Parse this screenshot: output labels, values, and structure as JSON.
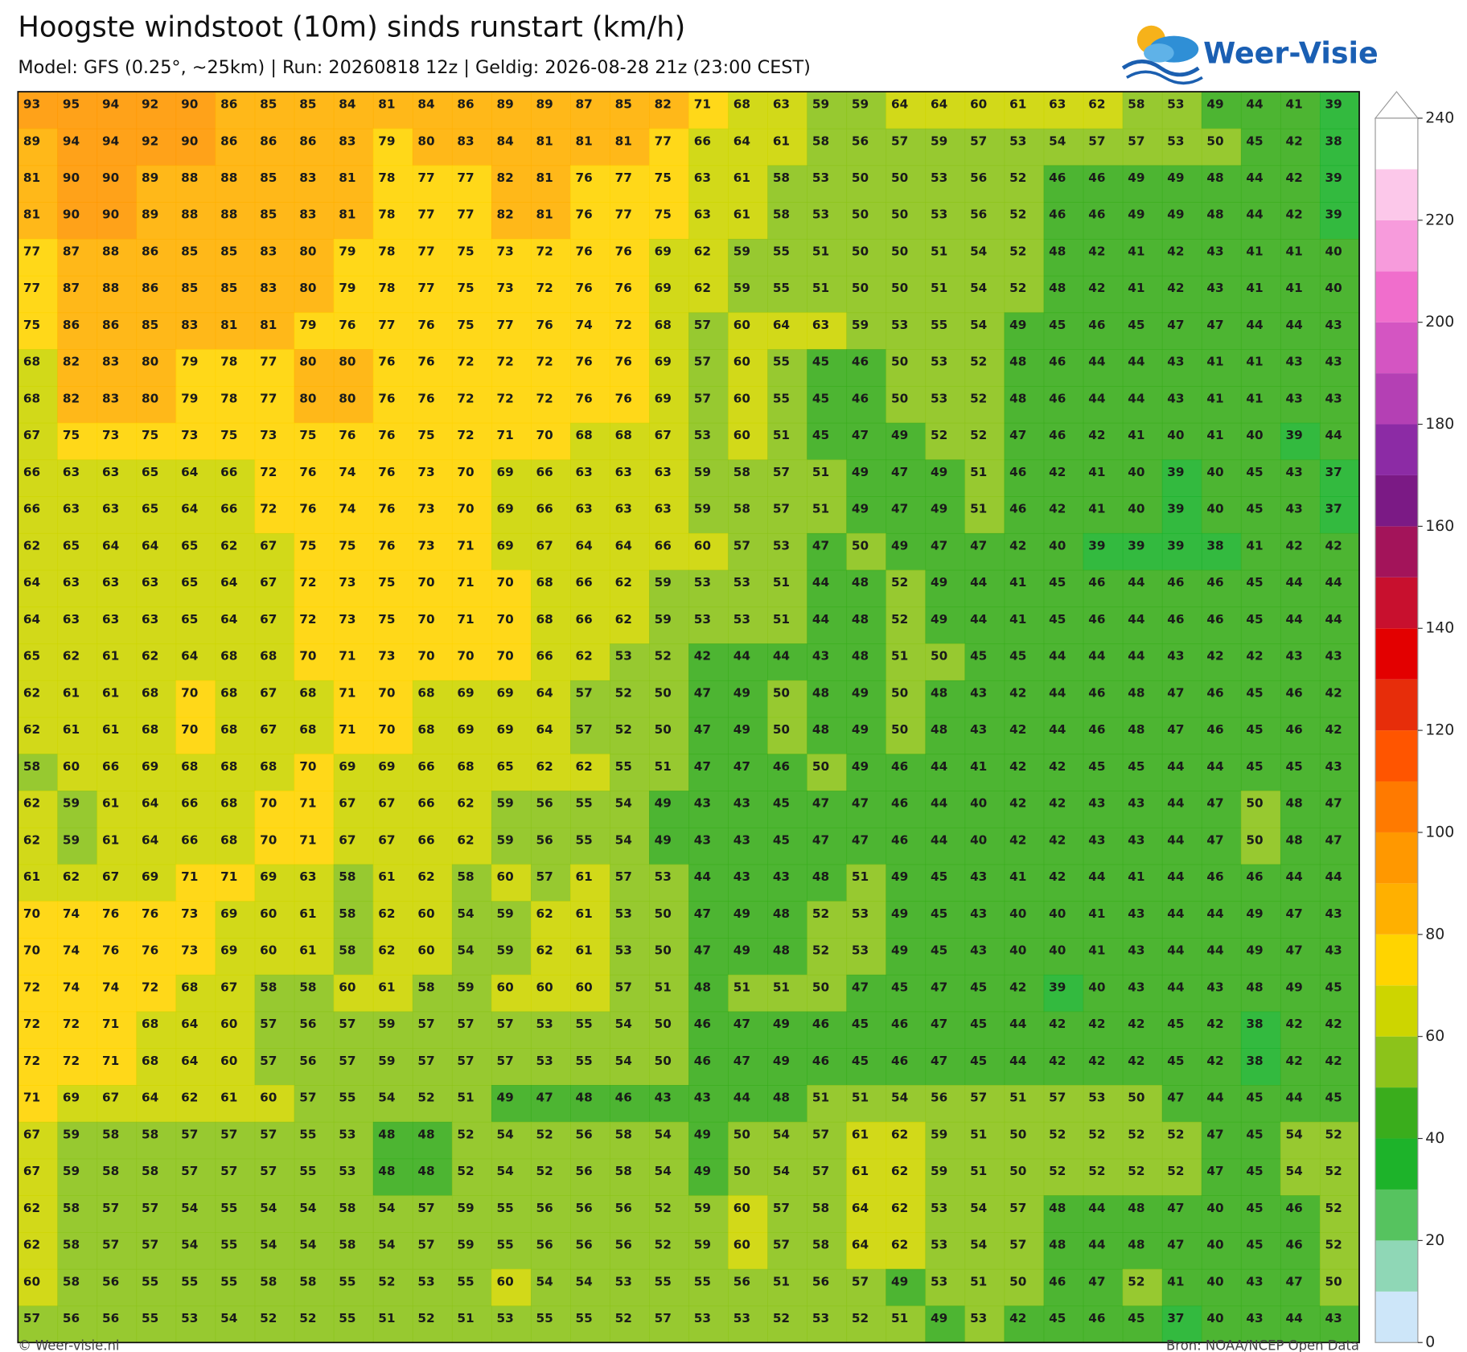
{
  "header": {
    "title": "Hoogste windstoot (10m) sinds runstart (km/h)",
    "subtitle": "Model: GFS (0.25°, ~25km)  |  Run: 20260818 12z  |  Geldig: 2026-08-28 21z (23:00 CEST)",
    "logo": "Weer-Visie"
  },
  "grid": {
    "values": [
      [
        93,
        95,
        94,
        92,
        90,
        86,
        85,
        85,
        84,
        81,
        84,
        86,
        89,
        89,
        87,
        85,
        82,
        71,
        68,
        63,
        59,
        59,
        64,
        64,
        60,
        61,
        63,
        62,
        58,
        53,
        49,
        44,
        41,
        39
      ],
      [
        89,
        94,
        94,
        92,
        90,
        86,
        86,
        86,
        83,
        79,
        80,
        83,
        84,
        81,
        81,
        81,
        77,
        66,
        64,
        61,
        58,
        56,
        57,
        59,
        57,
        53,
        54,
        57,
        57,
        53,
        50,
        45,
        42,
        38
      ],
      [
        81,
        90,
        90,
        89,
        88,
        88,
        85,
        83,
        81,
        78,
        77,
        77,
        82,
        81,
        76,
        77,
        75,
        63,
        61,
        58,
        53,
        50,
        50,
        53,
        56,
        52,
        46,
        46,
        49,
        49,
        48,
        44,
        42,
        39
      ],
      [
        81,
        90,
        90,
        89,
        88,
        88,
        85,
        83,
        81,
        78,
        77,
        77,
        82,
        81,
        76,
        77,
        75,
        63,
        61,
        58,
        53,
        50,
        50,
        53,
        56,
        52,
        46,
        46,
        49,
        49,
        48,
        44,
        42,
        39
      ],
      [
        77,
        87,
        88,
        86,
        85,
        85,
        83,
        80,
        79,
        78,
        77,
        75,
        73,
        72,
        76,
        76,
        69,
        62,
        59,
        55,
        51,
        50,
        50,
        51,
        54,
        52,
        48,
        42,
        41,
        42,
        43,
        41,
        41,
        40
      ],
      [
        77,
        87,
        88,
        86,
        85,
        85,
        83,
        80,
        79,
        78,
        77,
        75,
        73,
        72,
        76,
        76,
        69,
        62,
        59,
        55,
        51,
        50,
        50,
        51,
        54,
        52,
        48,
        42,
        41,
        42,
        43,
        41,
        41,
        40
      ],
      [
        75,
        86,
        86,
        85,
        83,
        81,
        81,
        79,
        76,
        77,
        76,
        75,
        77,
        76,
        74,
        72,
        68,
        57,
        60,
        64,
        63,
        59,
        53,
        55,
        54,
        49,
        45,
        46,
        45,
        47,
        47,
        44,
        44,
        43
      ],
      [
        68,
        82,
        83,
        80,
        79,
        78,
        77,
        80,
        80,
        76,
        76,
        72,
        72,
        72,
        76,
        76,
        69,
        57,
        60,
        55,
        45,
        46,
        50,
        53,
        52,
        48,
        46,
        44,
        44,
        43,
        41,
        41,
        43,
        43
      ],
      [
        68,
        82,
        83,
        80,
        79,
        78,
        77,
        80,
        80,
        76,
        76,
        72,
        72,
        72,
        76,
        76,
        69,
        57,
        60,
        55,
        45,
        46,
        50,
        53,
        52,
        48,
        46,
        44,
        44,
        43,
        41,
        41,
        43,
        43
      ],
      [
        67,
        75,
        73,
        75,
        73,
        75,
        73,
        75,
        76,
        76,
        75,
        72,
        71,
        70,
        68,
        68,
        67,
        53,
        60,
        51,
        45,
        47,
        49,
        52,
        52,
        47,
        46,
        42,
        41,
        40,
        41,
        40,
        39,
        44
      ],
      [
        66,
        63,
        63,
        65,
        64,
        66,
        72,
        76,
        74,
        76,
        73,
        70,
        69,
        66,
        63,
        63,
        63,
        59,
        58,
        57,
        51,
        49,
        47,
        49,
        51,
        46,
        42,
        41,
        40,
        39,
        40,
        45,
        43,
        37
      ],
      [
        66,
        63,
        63,
        65,
        64,
        66,
        72,
        76,
        74,
        76,
        73,
        70,
        69,
        66,
        63,
        63,
        63,
        59,
        58,
        57,
        51,
        49,
        47,
        49,
        51,
        46,
        42,
        41,
        40,
        39,
        40,
        45,
        43,
        37
      ],
      [
        62,
        65,
        64,
        64,
        65,
        62,
        67,
        75,
        75,
        76,
        73,
        71,
        69,
        67,
        64,
        64,
        66,
        60,
        57,
        53,
        47,
        50,
        49,
        47,
        47,
        42,
        40,
        39,
        39,
        39,
        38,
        41,
        42,
        42
      ],
      [
        64,
        63,
        63,
        63,
        65,
        64,
        67,
        72,
        73,
        75,
        70,
        71,
        70,
        68,
        66,
        62,
        59,
        53,
        53,
        51,
        44,
        48,
        52,
        49,
        44,
        41,
        45,
        46,
        44,
        46,
        46,
        45,
        44,
        44
      ],
      [
        64,
        63,
        63,
        63,
        65,
        64,
        67,
        72,
        73,
        75,
        70,
        71,
        70,
        68,
        66,
        62,
        59,
        53,
        53,
        51,
        44,
        48,
        52,
        49,
        44,
        41,
        45,
        46,
        44,
        46,
        46,
        45,
        44,
        44
      ],
      [
        65,
        62,
        61,
        62,
        64,
        68,
        68,
        70,
        71,
        73,
        70,
        70,
        70,
        66,
        62,
        53,
        52,
        42,
        44,
        44,
        43,
        48,
        51,
        50,
        45,
        45,
        44,
        44,
        44,
        43,
        42,
        42,
        43,
        43
      ],
      [
        62,
        61,
        61,
        68,
        70,
        68,
        67,
        68,
        71,
        70,
        68,
        69,
        69,
        64,
        57,
        52,
        50,
        47,
        49,
        50,
        48,
        49,
        50,
        48,
        43,
        42,
        44,
        46,
        48,
        47,
        46,
        45,
        46,
        42
      ],
      [
        62,
        61,
        61,
        68,
        70,
        68,
        67,
        68,
        71,
        70,
        68,
        69,
        69,
        64,
        57,
        52,
        50,
        47,
        49,
        50,
        48,
        49,
        50,
        48,
        43,
        42,
        44,
        46,
        48,
        47,
        46,
        45,
        46,
        42
      ],
      [
        58,
        60,
        66,
        69,
        68,
        68,
        68,
        70,
        69,
        69,
        66,
        68,
        65,
        62,
        62,
        55,
        51,
        47,
        47,
        46,
        50,
        49,
        46,
        44,
        41,
        42,
        42,
        45,
        45,
        44,
        44,
        45,
        45,
        43
      ],
      [
        62,
        59,
        61,
        64,
        66,
        68,
        70,
        71,
        67,
        67,
        66,
        62,
        59,
        56,
        55,
        54,
        49,
        43,
        43,
        45,
        47,
        47,
        46,
        44,
        40,
        42,
        42,
        43,
        43,
        44,
        47,
        50,
        48,
        47
      ],
      [
        62,
        59,
        61,
        64,
        66,
        68,
        70,
        71,
        67,
        67,
        66,
        62,
        59,
        56,
        55,
        54,
        49,
        43,
        43,
        45,
        47,
        47,
        46,
        44,
        40,
        42,
        42,
        43,
        43,
        44,
        47,
        50,
        48,
        47
      ],
      [
        61,
        62,
        67,
        69,
        71,
        71,
        69,
        63,
        58,
        61,
        62,
        58,
        60,
        57,
        61,
        57,
        53,
        44,
        43,
        43,
        48,
        51,
        49,
        45,
        43,
        41,
        42,
        44,
        41,
        44,
        46,
        46,
        44,
        44
      ],
      [
        70,
        74,
        76,
        76,
        73,
        69,
        60,
        61,
        58,
        62,
        60,
        54,
        59,
        62,
        61,
        53,
        50,
        47,
        49,
        48,
        52,
        53,
        49,
        45,
        43,
        40,
        40,
        41,
        43,
        44,
        44,
        49,
        47,
        43
      ],
      [
        70,
        74,
        76,
        76,
        73,
        69,
        60,
        61,
        58,
        62,
        60,
        54,
        59,
        62,
        61,
        53,
        50,
        47,
        49,
        48,
        52,
        53,
        49,
        45,
        43,
        40,
        40,
        41,
        43,
        44,
        44,
        49,
        47,
        43
      ],
      [
        72,
        74,
        74,
        72,
        68,
        67,
        58,
        58,
        60,
        61,
        58,
        59,
        60,
        60,
        60,
        57,
        51,
        48,
        51,
        51,
        50,
        47,
        45,
        47,
        45,
        42,
        39,
        40,
        43,
        44,
        43,
        48,
        49,
        45
      ],
      [
        72,
        72,
        71,
        68,
        64,
        60,
        57,
        56,
        57,
        59,
        57,
        57,
        57,
        53,
        55,
        54,
        50,
        46,
        47,
        49,
        46,
        45,
        46,
        47,
        45,
        44,
        42,
        42,
        42,
        45,
        42,
        38,
        42,
        42
      ],
      [
        72,
        72,
        71,
        68,
        64,
        60,
        57,
        56,
        57,
        59,
        57,
        57,
        57,
        53,
        55,
        54,
        50,
        46,
        47,
        49,
        46,
        45,
        46,
        47,
        45,
        44,
        42,
        42,
        42,
        45,
        42,
        38,
        42,
        42
      ],
      [
        71,
        69,
        67,
        64,
        62,
        61,
        60,
        57,
        55,
        54,
        52,
        51,
        49,
        47,
        48,
        46,
        43,
        43,
        44,
        48,
        51,
        51,
        54,
        56,
        57,
        51,
        57,
        53,
        50,
        47,
        44,
        45,
        44,
        45
      ],
      [
        67,
        59,
        58,
        58,
        57,
        57,
        57,
        55,
        53,
        48,
        48,
        52,
        54,
        52,
        56,
        58,
        54,
        49,
        50,
        54,
        57,
        61,
        62,
        59,
        51,
        50,
        52,
        52,
        52,
        52,
        47,
        45,
        54,
        52
      ],
      [
        67,
        59,
        58,
        58,
        57,
        57,
        57,
        55,
        53,
        48,
        48,
        52,
        54,
        52,
        56,
        58,
        54,
        49,
        50,
        54,
        57,
        61,
        62,
        59,
        51,
        50,
        52,
        52,
        52,
        52,
        47,
        45,
        54,
        52
      ],
      [
        62,
        58,
        57,
        57,
        54,
        55,
        54,
        54,
        58,
        54,
        57,
        59,
        55,
        56,
        56,
        56,
        52,
        59,
        60,
        57,
        58,
        64,
        62,
        53,
        54,
        57,
        48,
        44,
        48,
        47,
        40,
        45,
        46,
        52
      ],
      [
        62,
        58,
        57,
        57,
        54,
        55,
        54,
        54,
        58,
        54,
        57,
        59,
        55,
        56,
        56,
        56,
        52,
        59,
        60,
        57,
        58,
        64,
        62,
        53,
        54,
        57,
        48,
        44,
        48,
        47,
        40,
        45,
        46,
        52
      ],
      [
        60,
        58,
        56,
        55,
        55,
        55,
        58,
        58,
        55,
        52,
        53,
        55,
        60,
        54,
        54,
        53,
        55,
        55,
        56,
        51,
        56,
        57,
        49,
        53,
        51,
        50,
        46,
        47,
        52,
        41,
        40,
        43,
        47,
        50
      ],
      [
        57,
        56,
        56,
        55,
        53,
        54,
        52,
        52,
        55,
        51,
        52,
        51,
        53,
        55,
        55,
        52,
        57,
        53,
        53,
        52,
        53,
        52,
        51,
        49,
        53,
        42,
        45,
        46,
        45,
        37,
        40,
        43,
        44,
        43
      ]
    ]
  },
  "colorbar": {
    "bounds": [
      0,
      10,
      20,
      30,
      40,
      50,
      60,
      70,
      80,
      90,
      100,
      110,
      120,
      130,
      140,
      150,
      160,
      170,
      180,
      190,
      200,
      210,
      220,
      230,
      240
    ],
    "colors": [
      "#cde6f9",
      "#8fd7b6",
      "#56c35f",
      "#1db32a",
      "#3aad1c",
      "#8cc31a",
      "#cdd500",
      "#ffd400",
      "#ffb000",
      "#ff9800",
      "#ff7a00",
      "#ff5500",
      "#e72d0a",
      "#e30000",
      "#c8102e",
      "#a3145a",
      "#7b1a85",
      "#8c2ba5",
      "#b440b4",
      "#d455c2",
      "#f06ecc",
      "#f79bdc",
      "#fcc8ea",
      "#ffffff"
    ],
    "ticks": [
      0,
      20,
      40,
      60,
      80,
      100,
      120,
      140,
      160,
      180,
      200,
      220,
      240
    ]
  },
  "footer": {
    "left": "© Weer-visie.nl",
    "right": "Bron: NOAA/NCEP Open Data"
  }
}
